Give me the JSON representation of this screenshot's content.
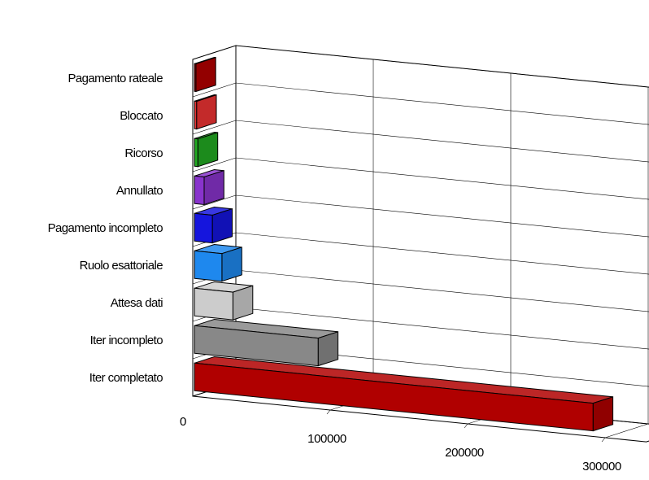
{
  "chart_data": {
    "type": "bar",
    "orientation": "horizontal",
    "three_d": true,
    "title": "",
    "xlabel": "",
    "ylabel": "",
    "categories": [
      "Pagamento rateale",
      "Bloccato",
      "Ricorso",
      "Annullato",
      "Pagamento incompleto",
      "Ruolo esattoriale",
      "Attesa dati",
      "Iter incompleto",
      "Iter completato"
    ],
    "values": [
      1000,
      1500,
      2500,
      7000,
      13000,
      20000,
      28000,
      90000,
      290000
    ],
    "colors": [
      "#b30000",
      "#ee3333",
      "#22aa22",
      "#8833cc",
      "#1515dd",
      "#1e88ee",
      "#cccccc",
      "#888888",
      "#b00000"
    ],
    "xlim": [
      0,
      330000
    ],
    "ticks": [
      {
        "value": 0,
        "label": "0"
      },
      {
        "value": 100000,
        "label": "100000"
      },
      {
        "value": 200000,
        "label": "200000"
      },
      {
        "value": 300000,
        "label": "300000"
      }
    ],
    "grid": true,
    "legend": "none"
  }
}
